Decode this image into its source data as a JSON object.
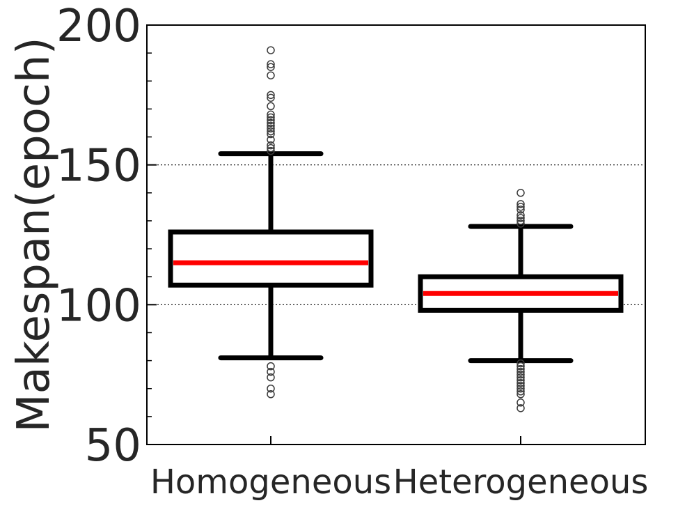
{
  "chart_data": {
    "type": "box",
    "title": "",
    "xlabel": "",
    "ylabel": "Makespan(epoch)",
    "ylim": [
      50,
      200
    ],
    "yticks": [
      {
        "value": 50,
        "label": "50"
      },
      {
        "value": 100,
        "label": "100"
      },
      {
        "value": 150,
        "label": "150"
      },
      {
        "value": 200,
        "label": "200"
      }
    ],
    "y_minor_ticks": [
      60,
      70,
      80,
      90,
      110,
      120,
      130,
      140,
      160,
      170,
      180,
      190
    ],
    "grid": {
      "y_values": [
        100,
        150
      ],
      "style": "dotted"
    },
    "categories": [
      "Homogeneous",
      "Heterogeneous"
    ],
    "series": [
      {
        "category": "Homogeneous",
        "whisker_low": 81,
        "q1": 107,
        "median": 115,
        "q3": 126,
        "whisker_high": 154,
        "outliers": [
          68,
          70,
          74,
          76,
          78,
          155,
          156,
          157,
          159,
          161,
          162,
          163,
          164,
          165,
          166,
          167,
          168,
          171,
          174,
          175,
          182,
          185,
          186,
          191
        ]
      },
      {
        "category": "Heterogeneous",
        "whisker_low": 80,
        "q1": 98,
        "median": 104,
        "q3": 110,
        "whisker_high": 128,
        "outliers": [
          63,
          65,
          68,
          69,
          70,
          71,
          72,
          73,
          74,
          75,
          76,
          77,
          78,
          79,
          129,
          130,
          131,
          132,
          134,
          135,
          136,
          140
        ]
      }
    ],
    "colors": {
      "box": "#000000",
      "median": "#ff0000",
      "outlier": "#3a3a3a",
      "text": "#262626"
    }
  }
}
